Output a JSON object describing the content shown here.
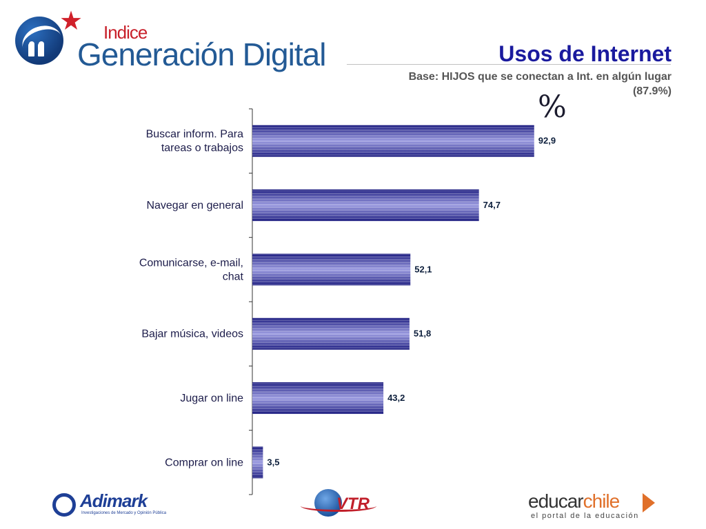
{
  "header": {
    "logo_small": "Indice",
    "logo_big": "Generación Digital",
    "title": "Usos de Internet",
    "subtitle": "Base: HIJOS que se conectan a Int. en algún lugar (87.9%)",
    "unit": "%"
  },
  "chart_data": {
    "type": "bar",
    "orientation": "horizontal",
    "categories": [
      [
        "Buscar inform. Para",
        "tareas o trabajos"
      ],
      [
        "Navegar en general"
      ],
      [
        "Comunicarse, e-mail,",
        "chat"
      ],
      [
        "Bajar música, videos"
      ],
      [
        "Jugar on line"
      ],
      [
        "Comprar on line"
      ]
    ],
    "values": [
      92.9,
      74.7,
      52.1,
      51.8,
      43.2,
      3.5
    ],
    "value_labels": [
      "92,9",
      "74,7",
      "52,1",
      "51,8",
      "43,2",
      "3,5"
    ],
    "xlim": [
      0,
      100
    ],
    "grid": false,
    "legend": "none",
    "colors": {
      "bar_dark": "#1c1c80",
      "bar_light": "#9a9ae0",
      "axis": "#333333"
    }
  },
  "footer": {
    "adimark": "Adimark",
    "adimark_sub": "Investigaciones de Mercado y Opinión Pública",
    "vtr": "VTR",
    "educar_a": "educar",
    "educar_b": "chile",
    "educar_sub": "el portal de la educación"
  }
}
